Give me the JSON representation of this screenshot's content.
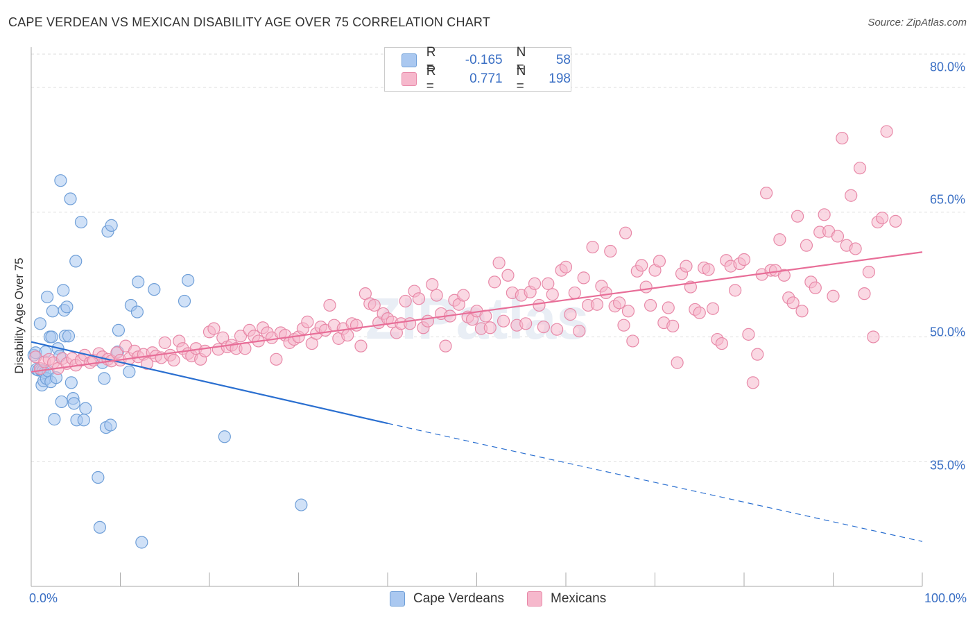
{
  "title": "CAPE VERDEAN VS MEXICAN DISABILITY AGE OVER 75 CORRELATION CHART",
  "source": "Source: ZipAtlas.com",
  "watermark": "ZIPatlas",
  "colors": {
    "blue_fill": "#aac8f0",
    "blue_stroke": "#6f9fd8",
    "blue_line": "#2a6fd0",
    "pink_fill": "#f6b8cc",
    "pink_stroke": "#e889a8",
    "pink_line": "#e86e98",
    "tick_text": "#3a6fc4",
    "grid": "#dddddd"
  },
  "legend": {
    "rows": [
      {
        "r_label": "R =",
        "r_value": "-0.165",
        "n_label": "N =",
        "n_value": "58"
      },
      {
        "r_label": "R =",
        "r_value": "0.771",
        "n_label": "N =",
        "n_value": "198"
      }
    ]
  },
  "chart_data": {
    "type": "scatter",
    "xlabel": "",
    "ylabel": "Disability Age Over 75",
    "xlim": [
      0,
      100
    ],
    "ylim": [
      20,
      84
    ],
    "x_tick_labels": [
      "0.0%",
      "100.0%"
    ],
    "y_ticks": [
      {
        "value": 80,
        "label": "80.0%"
      },
      {
        "value": 65,
        "label": "65.0%"
      },
      {
        "value": 50,
        "label": "50.0%"
      },
      {
        "value": 35,
        "label": "35.0%"
      }
    ],
    "grid": "horizontal dashed",
    "legend_position": "bottom",
    "series": [
      {
        "name": "Cape Verdeans",
        "color": "blue",
        "points": [
          [
            0.3,
            47.8
          ],
          [
            0.5,
            48.1
          ],
          [
            0.6,
            46.1
          ],
          [
            0.8,
            46.0
          ],
          [
            1.0,
            51.6
          ],
          [
            1.1,
            46.0
          ],
          [
            1.2,
            44.2
          ],
          [
            1.3,
            45.9
          ],
          [
            1.4,
            44.7
          ],
          [
            1.5,
            45.7
          ],
          [
            1.6,
            48.2
          ],
          [
            1.7,
            45.0
          ],
          [
            1.8,
            54.8
          ],
          [
            1.9,
            45.9
          ],
          [
            2.1,
            50.0
          ],
          [
            2.2,
            44.6
          ],
          [
            2.3,
            50.0
          ],
          [
            2.4,
            53.1
          ],
          [
            2.6,
            40.1
          ],
          [
            2.8,
            45.1
          ],
          [
            3.0,
            48.6
          ],
          [
            3.2,
            47.7
          ],
          [
            3.3,
            68.8
          ],
          [
            3.4,
            42.2
          ],
          [
            3.6,
            55.6
          ],
          [
            3.7,
            53.2
          ],
          [
            3.8,
            50.1
          ],
          [
            4.0,
            53.6
          ],
          [
            4.2,
            50.1
          ],
          [
            4.4,
            66.6
          ],
          [
            4.5,
            44.5
          ],
          [
            4.7,
            42.6
          ],
          [
            4.8,
            42.0
          ],
          [
            5.0,
            59.1
          ],
          [
            5.1,
            40.0
          ],
          [
            5.6,
            63.8
          ],
          [
            5.9,
            40.0
          ],
          [
            6.1,
            41.4
          ],
          [
            7.5,
            33.1
          ],
          [
            7.7,
            27.1
          ],
          [
            8.0,
            46.9
          ],
          [
            8.2,
            45.0
          ],
          [
            8.4,
            39.1
          ],
          [
            8.6,
            62.7
          ],
          [
            8.9,
            39.4
          ],
          [
            9.0,
            63.4
          ],
          [
            9.8,
            50.8
          ],
          [
            9.7,
            48.2
          ],
          [
            11.0,
            45.8
          ],
          [
            11.2,
            53.8
          ],
          [
            11.9,
            53.0
          ],
          [
            12.0,
            56.6
          ],
          [
            12.4,
            25.3
          ],
          [
            13.8,
            55.7
          ],
          [
            17.2,
            54.3
          ],
          [
            17.6,
            56.8
          ],
          [
            21.7,
            38.0
          ],
          [
            30.3,
            29.8
          ]
        ]
      },
      {
        "name": "Mexicans",
        "color": "pink",
        "points": [
          [
            0.5,
            47.6
          ],
          [
            1.0,
            46.2
          ],
          [
            1.5,
            47.0
          ],
          [
            2.0,
            47.3
          ],
          [
            2.5,
            46.9
          ],
          [
            3.0,
            46.2
          ],
          [
            3.5,
            47.4
          ],
          [
            4.0,
            46.8
          ],
          [
            4.6,
            47.4
          ],
          [
            5.0,
            46.6
          ],
          [
            5.6,
            47.2
          ],
          [
            6.0,
            47.8
          ],
          [
            6.6,
            46.9
          ],
          [
            7.0,
            47.2
          ],
          [
            7.6,
            48.0
          ],
          [
            8.0,
            47.6
          ],
          [
            8.6,
            47.3
          ],
          [
            9.0,
            47.1
          ],
          [
            9.6,
            48.1
          ],
          [
            10.0,
            47.2
          ],
          [
            10.6,
            48.9
          ],
          [
            11.0,
            47.4
          ],
          [
            11.6,
            48.3
          ],
          [
            12.0,
            47.6
          ],
          [
            12.6,
            47.9
          ],
          [
            13.0,
            46.8
          ],
          [
            13.6,
            48.1
          ],
          [
            14.0,
            47.7
          ],
          [
            14.6,
            47.5
          ],
          [
            15.0,
            49.3
          ],
          [
            15.6,
            47.8
          ],
          [
            16.0,
            47.2
          ],
          [
            16.6,
            49.5
          ],
          [
            17.0,
            48.6
          ],
          [
            17.6,
            48.0
          ],
          [
            18.0,
            47.7
          ],
          [
            18.5,
            48.6
          ],
          [
            19.0,
            47.3
          ],
          [
            19.5,
            48.3
          ],
          [
            20.0,
            50.6
          ],
          [
            20.5,
            51.0
          ],
          [
            21.0,
            48.5
          ],
          [
            21.5,
            49.9
          ],
          [
            22.0,
            48.8
          ],
          [
            22.5,
            49.0
          ],
          [
            23.0,
            48.6
          ],
          [
            23.5,
            50.1
          ],
          [
            24.0,
            48.6
          ],
          [
            24.5,
            50.8
          ],
          [
            25.0,
            50.1
          ],
          [
            25.5,
            49.5
          ],
          [
            26.0,
            51.1
          ],
          [
            26.5,
            50.5
          ],
          [
            27.0,
            49.9
          ],
          [
            27.5,
            47.3
          ],
          [
            28.0,
            50.5
          ],
          [
            28.5,
            50.2
          ],
          [
            29.0,
            49.3
          ],
          [
            29.5,
            49.7
          ],
          [
            30.0,
            50.0
          ],
          [
            30.5,
            51.0
          ],
          [
            31.0,
            51.8
          ],
          [
            31.5,
            49.2
          ],
          [
            32.0,
            50.4
          ],
          [
            32.5,
            51.2
          ],
          [
            33.0,
            50.8
          ],
          [
            33.5,
            53.8
          ],
          [
            34.0,
            51.4
          ],
          [
            34.5,
            49.8
          ],
          [
            35.0,
            51.0
          ],
          [
            35.5,
            50.2
          ],
          [
            36.0,
            51.6
          ],
          [
            36.5,
            51.4
          ],
          [
            37.0,
            48.9
          ],
          [
            37.5,
            55.2
          ],
          [
            38.0,
            54.0
          ],
          [
            38.5,
            53.8
          ],
          [
            39.0,
            51.7
          ],
          [
            39.5,
            52.8
          ],
          [
            40.0,
            52.2
          ],
          [
            40.5,
            51.8
          ],
          [
            41.0,
            50.5
          ],
          [
            41.5,
            51.6
          ],
          [
            42.0,
            54.3
          ],
          [
            42.5,
            51.6
          ],
          [
            43.0,
            55.5
          ],
          [
            43.5,
            54.6
          ],
          [
            44.0,
            51.1
          ],
          [
            44.5,
            51.9
          ],
          [
            45.0,
            56.3
          ],
          [
            45.5,
            55.0
          ],
          [
            46.0,
            52.8
          ],
          [
            46.5,
            48.9
          ],
          [
            47.0,
            52.5
          ],
          [
            47.5,
            54.4
          ],
          [
            48.0,
            53.9
          ],
          [
            48.5,
            55.0
          ],
          [
            49.0,
            52.4
          ],
          [
            49.5,
            52.1
          ],
          [
            50.0,
            53.1
          ],
          [
            50.5,
            51.0
          ],
          [
            51.0,
            52.5
          ],
          [
            51.5,
            51.1
          ],
          [
            52.0,
            56.6
          ],
          [
            52.5,
            58.9
          ],
          [
            53.0,
            51.9
          ],
          [
            53.5,
            57.4
          ],
          [
            54.0,
            55.3
          ],
          [
            54.5,
            51.4
          ],
          [
            55.0,
            55.0
          ],
          [
            55.5,
            51.6
          ],
          [
            56.0,
            55.4
          ],
          [
            56.5,
            56.4
          ],
          [
            57.0,
            53.8
          ],
          [
            57.5,
            51.2
          ],
          [
            58.0,
            56.4
          ],
          [
            58.5,
            55.1
          ],
          [
            59.0,
            50.9
          ],
          [
            59.5,
            58.0
          ],
          [
            60.0,
            58.4
          ],
          [
            60.5,
            52.7
          ],
          [
            61.0,
            55.3
          ],
          [
            61.5,
            50.7
          ],
          [
            62.0,
            57.1
          ],
          [
            62.5,
            53.8
          ],
          [
            63.0,
            60.8
          ],
          [
            63.5,
            53.9
          ],
          [
            64.0,
            56.1
          ],
          [
            64.5,
            55.3
          ],
          [
            65.0,
            60.3
          ],
          [
            65.5,
            53.7
          ],
          [
            66.0,
            54.1
          ],
          [
            66.5,
            51.4
          ],
          [
            67.0,
            53.1
          ],
          [
            67.5,
            49.5
          ],
          [
            68.0,
            57.9
          ],
          [
            68.5,
            58.6
          ],
          [
            69.0,
            56.0
          ],
          [
            69.5,
            53.8
          ],
          [
            70.0,
            58.0
          ],
          [
            70.5,
            59.1
          ],
          [
            71.0,
            51.7
          ],
          [
            71.5,
            53.5
          ],
          [
            72.0,
            51.3
          ],
          [
            72.5,
            46.9
          ],
          [
            73.0,
            57.6
          ],
          [
            73.5,
            58.5
          ],
          [
            74.0,
            56.0
          ],
          [
            74.5,
            53.3
          ],
          [
            75.0,
            52.9
          ],
          [
            75.5,
            58.3
          ],
          [
            76.0,
            58.1
          ],
          [
            76.5,
            53.4
          ],
          [
            77.0,
            49.7
          ],
          [
            77.5,
            49.2
          ],
          [
            78.0,
            59.2
          ],
          [
            78.5,
            58.5
          ],
          [
            79.0,
            55.6
          ],
          [
            79.5,
            58.8
          ],
          [
            80.0,
            59.3
          ],
          [
            80.5,
            50.3
          ],
          [
            81.0,
            44.5
          ],
          [
            81.5,
            47.9
          ],
          [
            82.0,
            57.5
          ],
          [
            82.5,
            67.3
          ],
          [
            83.0,
            58.0
          ],
          [
            83.5,
            58.0
          ],
          [
            84.0,
            61.7
          ],
          [
            84.5,
            57.4
          ],
          [
            85.0,
            54.7
          ],
          [
            85.5,
            54.1
          ],
          [
            86.0,
            64.5
          ],
          [
            86.5,
            53.1
          ],
          [
            87.0,
            61.0
          ],
          [
            87.5,
            56.6
          ],
          [
            88.0,
            55.9
          ],
          [
            88.5,
            62.6
          ],
          [
            89.0,
            64.7
          ],
          [
            89.5,
            62.7
          ],
          [
            90.0,
            54.9
          ],
          [
            90.5,
            62.1
          ],
          [
            91.0,
            73.9
          ],
          [
            91.5,
            61.0
          ],
          [
            92.0,
            67.0
          ],
          [
            92.5,
            60.6
          ],
          [
            93.0,
            70.3
          ],
          [
            93.5,
            55.2
          ],
          [
            94.0,
            57.8
          ],
          [
            94.5,
            50.0
          ],
          [
            95.0,
            63.8
          ],
          [
            95.5,
            64.3
          ],
          [
            96.0,
            74.7
          ],
          [
            97.0,
            63.9
          ],
          [
            66.7,
            62.5
          ]
        ]
      }
    ],
    "trend_lines": [
      {
        "series": "Cape Verdeans",
        "x0": 0,
        "y0": 49.4,
        "x1": 40,
        "y1": 39.6,
        "dashed_to_x": 100,
        "dashed_to_y": 25.4
      },
      {
        "series": "Mexicans",
        "x0": 0,
        "y0": 45.8,
        "x1": 100,
        "y1": 60.2
      }
    ]
  },
  "bottom_legend": {
    "items": [
      {
        "label": "Cape Verdeans"
      },
      {
        "label": "Mexicans"
      }
    ]
  }
}
